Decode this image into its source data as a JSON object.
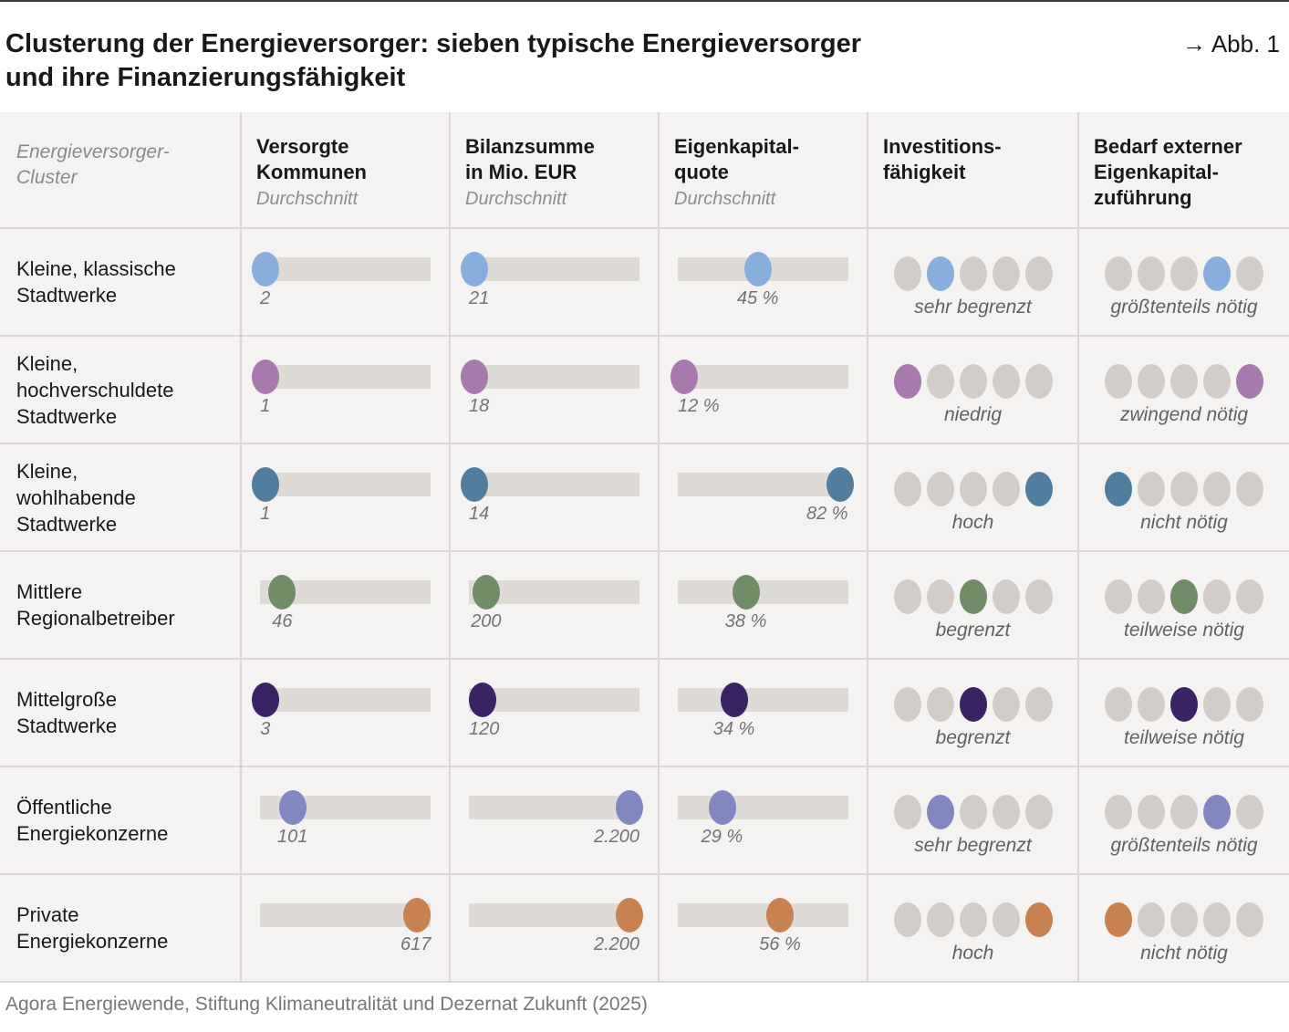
{
  "header": {
    "title_lines": [
      "Clusterung der Energieversorger: sieben typische Energieversorger",
      "und ihre Finanzierungsfähigkeit"
    ],
    "figure_label": "→ Abb. 1"
  },
  "footer": {
    "source": "Agora Energiewende, Stiftung Klimaneutralität und Dezernat Zukunft (2025)"
  },
  "colors": {
    "track": "#dedad6",
    "inactive_dot": "#d2cdc9",
    "cell_bg": "#f4f3f2",
    "grid_line": "#ddd5de"
  },
  "chart_data": {
    "type": "table",
    "title": "Clusterung der Energieversorger: sieben typische Energieversorger und ihre Finanzierungsfähigkeit",
    "row_header_label": "Energieversorger-\nCluster",
    "columns": [
      {
        "title": "Versorgte\nKommunen",
        "subtitle": "Durchschnitt"
      },
      {
        "title": "Bilanzsumme\nin Mio. EUR",
        "subtitle": "Durchschnitt"
      },
      {
        "title": "Eigenkapital-\nquote",
        "subtitle": "Durchschnitt"
      },
      {
        "title": "Investitions-\nfähigkeit",
        "subtitle": ""
      },
      {
        "title": "Bedarf externer\nEigenkapital-\nzuführung",
        "subtitle": ""
      }
    ],
    "rating_scale_max": 5,
    "rows": [
      {
        "cluster": "Kleine, klassische\nStadtwerke",
        "color": "#87aedd",
        "versorgte_kommunen": {
          "value": "2",
          "pos_pct": 3
        },
        "bilanzsumme": {
          "value": "21",
          "pos_pct": 3
        },
        "eigenkapitalquote": {
          "value": "45 %",
          "pos_pct": 47
        },
        "investitionsfaehigkeit": {
          "label": "sehr begrenzt",
          "level": 2
        },
        "bedarf_eigenkapital": {
          "label": "größtenteils nötig",
          "level": 4
        }
      },
      {
        "cluster": "Kleine,\nhochverschuldete\nStadtwerke",
        "color": "#a67aad",
        "versorgte_kommunen": {
          "value": "1",
          "pos_pct": 3
        },
        "bilanzsumme": {
          "value": "18",
          "pos_pct": 3
        },
        "eigenkapitalquote": {
          "value": "12 %",
          "pos_pct": 4
        },
        "investitionsfaehigkeit": {
          "label": "niedrig",
          "level": 1
        },
        "bedarf_eigenkapital": {
          "label": "zwingend nötig",
          "level": 5
        }
      },
      {
        "cluster": "Kleine,\nwohlhabende\nStadtwerke",
        "color": "#517e9e",
        "versorgte_kommunen": {
          "value": "1",
          "pos_pct": 3
        },
        "bilanzsumme": {
          "value": "14",
          "pos_pct": 3
        },
        "eigenkapitalquote": {
          "value": "82 %",
          "pos_pct": 95
        },
        "investitionsfaehigkeit": {
          "label": "hoch",
          "level": 5
        },
        "bedarf_eigenkapital": {
          "label": "nicht nötig",
          "level": 1
        }
      },
      {
        "cluster": "Mittlere\nRegionalbetreiber",
        "color": "#708d68",
        "versorgte_kommunen": {
          "value": "46",
          "pos_pct": 13
        },
        "bilanzsumme": {
          "value": "200",
          "pos_pct": 10
        },
        "eigenkapitalquote": {
          "value": "38 %",
          "pos_pct": 40
        },
        "investitionsfaehigkeit": {
          "label": "begrenzt",
          "level": 3
        },
        "bedarf_eigenkapital": {
          "label": "teilweise nötig",
          "level": 3
        }
      },
      {
        "cluster": "Mittelgroße\nStadtwerke",
        "color": "#3a2365",
        "versorgte_kommunen": {
          "value": "3",
          "pos_pct": 3
        },
        "bilanzsumme": {
          "value": "120",
          "pos_pct": 8
        },
        "eigenkapitalquote": {
          "value": "34 %",
          "pos_pct": 33
        },
        "investitionsfaehigkeit": {
          "label": "begrenzt",
          "level": 3
        },
        "bedarf_eigenkapital": {
          "label": "teilweise nötig",
          "level": 3
        }
      },
      {
        "cluster": "Öffentliche\nEnergiekonzerne",
        "color": "#8287c1",
        "versorgte_kommunen": {
          "value": "101",
          "pos_pct": 19
        },
        "bilanzsumme": {
          "value": "2.200",
          "pos_pct": 94
        },
        "eigenkapitalquote": {
          "value": "29 %",
          "pos_pct": 26
        },
        "investitionsfaehigkeit": {
          "label": "sehr begrenzt",
          "level": 2
        },
        "bedarf_eigenkapital": {
          "label": "größtenteils nötig",
          "level": 4
        }
      },
      {
        "cluster": "Private\nEnergiekonzerne",
        "color": "#c8824f",
        "versorgte_kommunen": {
          "value": "617",
          "pos_pct": 92
        },
        "bilanzsumme": {
          "value": "2.200",
          "pos_pct": 94
        },
        "eigenkapitalquote": {
          "value": "56 %",
          "pos_pct": 60
        },
        "investitionsfaehigkeit": {
          "label": "hoch",
          "level": 5
        },
        "bedarf_eigenkapital": {
          "label": "nicht nötig",
          "level": 1
        }
      }
    ]
  }
}
